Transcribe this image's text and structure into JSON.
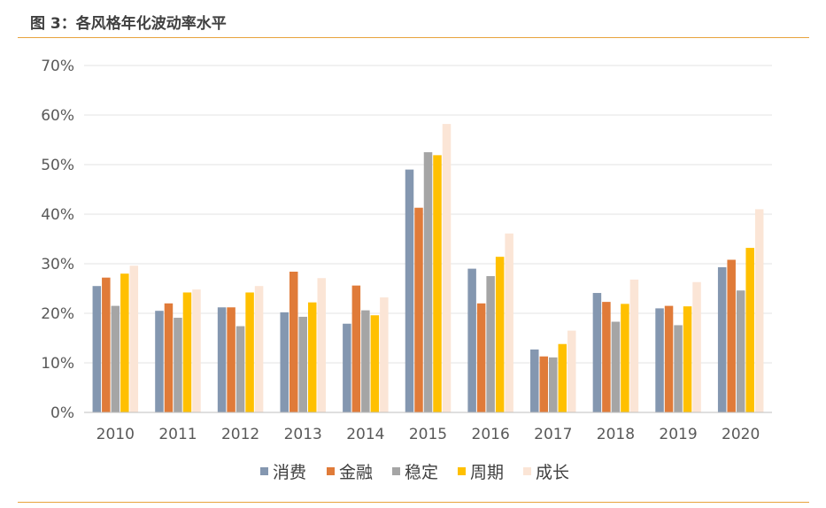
{
  "figure_title": "图 3：各风格年化波动率水平",
  "chart_data": {
    "type": "bar",
    "categories": [
      "2010",
      "2011",
      "2012",
      "2013",
      "2014",
      "2015",
      "2016",
      "2017",
      "2018",
      "2019",
      "2020"
    ],
    "series": [
      {
        "name": "消费",
        "color": "#8497b0",
        "values": [
          25.5,
          20.5,
          21.2,
          20.2,
          17.9,
          49.0,
          29.0,
          12.7,
          24.1,
          21.0,
          29.3
        ]
      },
      {
        "name": "金融",
        "color": "#e07b39",
        "values": [
          27.2,
          22.0,
          21.2,
          28.4,
          25.6,
          41.3,
          22.0,
          11.3,
          22.3,
          21.5,
          30.8
        ]
      },
      {
        "name": "稳定",
        "color": "#a5a5a5",
        "values": [
          21.5,
          19.1,
          17.4,
          19.3,
          20.6,
          52.5,
          27.5,
          11.1,
          18.3,
          17.6,
          24.6
        ]
      },
      {
        "name": "周期",
        "color": "#ffc000",
        "values": [
          28.0,
          24.2,
          24.2,
          22.2,
          19.6,
          51.9,
          31.4,
          13.8,
          21.9,
          21.4,
          33.2
        ]
      },
      {
        "name": "成长",
        "color": "#fbe5d6",
        "values": [
          29.6,
          24.8,
          25.5,
          27.1,
          23.2,
          58.2,
          36.1,
          16.5,
          26.8,
          26.3,
          41.0
        ]
      }
    ],
    "ylim": [
      0,
      70
    ],
    "yticks": [
      0,
      10,
      20,
      30,
      40,
      50,
      60,
      70
    ],
    "ytick_labels": [
      "0%",
      "10%",
      "20%",
      "30%",
      "40%",
      "50%",
      "60%",
      "70%"
    ],
    "grid": true,
    "legend_position": "bottom"
  }
}
